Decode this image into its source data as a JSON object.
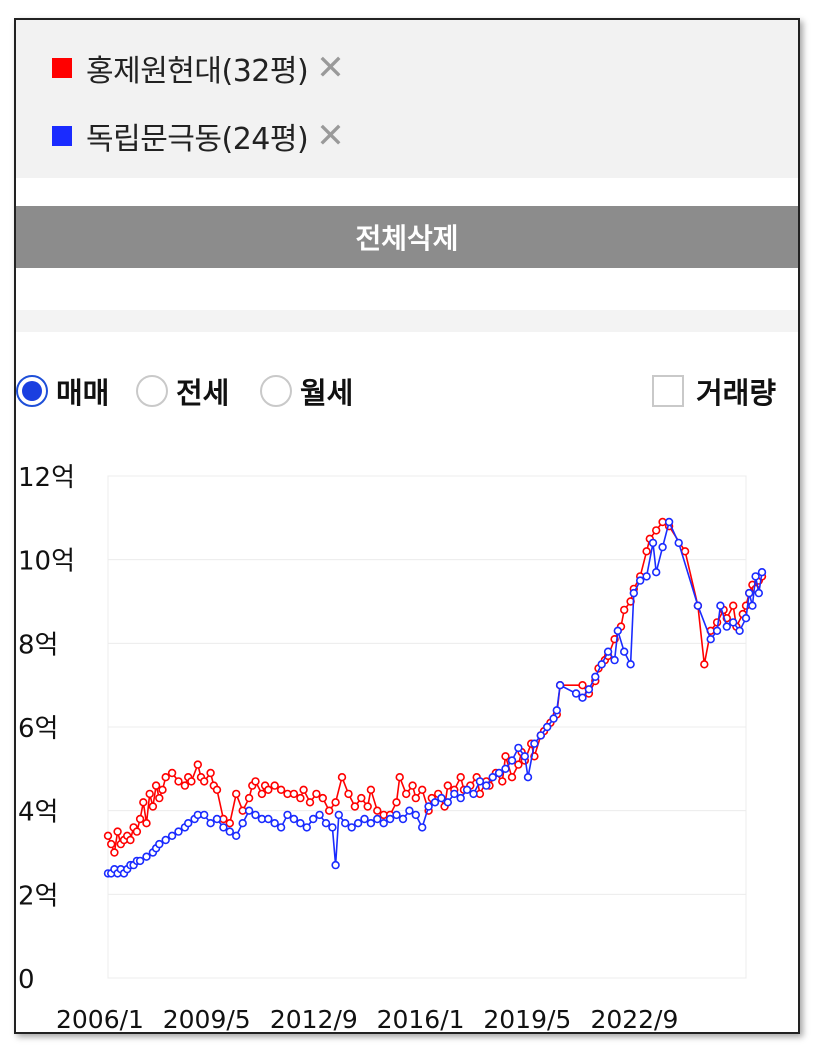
{
  "legend": [
    {
      "label": "홍제원현대(32평)",
      "color": "#ff0000",
      "close": "✕"
    },
    {
      "label": "독립문극동(24평)",
      "color": "#1a2bff",
      "close": "✕"
    }
  ],
  "delete_all_label": "전체삭제",
  "deal_types": [
    {
      "label": "매매",
      "selected": true
    },
    {
      "label": "전세",
      "selected": false
    },
    {
      "label": "월세",
      "selected": false
    }
  ],
  "volume_checkbox": {
    "label": "거래량",
    "checked": false
  },
  "chart_data": {
    "type": "line",
    "y_ticks": [
      "0",
      "2억",
      "4억",
      "6억",
      "8억",
      "10억",
      "12억"
    ],
    "y_tick_values": [
      0,
      2,
      4,
      6,
      8,
      10,
      12
    ],
    "x_ticks": [
      "2006/1",
      "2009/5",
      "2012/9",
      "2016/1",
      "2019/5",
      "2022/9"
    ],
    "x_tick_values": [
      2006.0,
      2009.33,
      2012.67,
      2016.0,
      2019.33,
      2022.67
    ],
    "xlim": [
      2006.0,
      2025.9
    ],
    "ylim": [
      0,
      12
    ],
    "grid": true,
    "series": [
      {
        "name": "홍제원현대(32평)",
        "color": "#ff0000",
        "points": [
          [
            2006.0,
            3.4
          ],
          [
            2006.1,
            3.2
          ],
          [
            2006.2,
            3.0
          ],
          [
            2006.3,
            3.5
          ],
          [
            2006.4,
            3.2
          ],
          [
            2006.5,
            3.3
          ],
          [
            2006.6,
            3.4
          ],
          [
            2006.7,
            3.3
          ],
          [
            2006.8,
            3.6
          ],
          [
            2006.9,
            3.5
          ],
          [
            2007.0,
            3.8
          ],
          [
            2007.1,
            4.2
          ],
          [
            2007.2,
            3.7
          ],
          [
            2007.3,
            4.4
          ],
          [
            2007.4,
            4.1
          ],
          [
            2007.5,
            4.6
          ],
          [
            2007.6,
            4.3
          ],
          [
            2007.7,
            4.5
          ],
          [
            2007.8,
            4.8
          ],
          [
            2008.0,
            4.9
          ],
          [
            2008.2,
            4.7
          ],
          [
            2008.4,
            4.6
          ],
          [
            2008.5,
            4.8
          ],
          [
            2008.6,
            4.7
          ],
          [
            2008.8,
            5.1
          ],
          [
            2008.9,
            4.8
          ],
          [
            2009.0,
            4.7
          ],
          [
            2009.2,
            4.9
          ],
          [
            2009.3,
            4.6
          ],
          [
            2009.4,
            4.5
          ],
          [
            2009.6,
            3.8
          ],
          [
            2009.8,
            3.7
          ],
          [
            2010.0,
            4.4
          ],
          [
            2010.2,
            4.0
          ],
          [
            2010.4,
            4.3
          ],
          [
            2010.5,
            4.6
          ],
          [
            2010.6,
            4.7
          ],
          [
            2010.8,
            4.4
          ],
          [
            2010.9,
            4.6
          ],
          [
            2011.0,
            4.5
          ],
          [
            2011.2,
            4.6
          ],
          [
            2011.4,
            4.5
          ],
          [
            2011.6,
            4.4
          ],
          [
            2011.8,
            4.4
          ],
          [
            2012.0,
            4.3
          ],
          [
            2012.1,
            4.5
          ],
          [
            2012.3,
            4.2
          ],
          [
            2012.5,
            4.4
          ],
          [
            2012.7,
            4.3
          ],
          [
            2012.9,
            4.0
          ],
          [
            2013.1,
            4.2
          ],
          [
            2013.3,
            4.8
          ],
          [
            2013.5,
            4.4
          ],
          [
            2013.7,
            4.1
          ],
          [
            2013.9,
            4.3
          ],
          [
            2014.1,
            4.1
          ],
          [
            2014.2,
            4.5
          ],
          [
            2014.4,
            4.0
          ],
          [
            2014.6,
            3.9
          ],
          [
            2014.8,
            3.9
          ],
          [
            2015.0,
            4.2
          ],
          [
            2015.1,
            4.8
          ],
          [
            2015.3,
            4.4
          ],
          [
            2015.5,
            4.6
          ],
          [
            2015.6,
            4.3
          ],
          [
            2015.8,
            4.5
          ],
          [
            2016.0,
            4.0
          ],
          [
            2016.1,
            4.3
          ],
          [
            2016.3,
            4.4
          ],
          [
            2016.5,
            4.1
          ],
          [
            2016.6,
            4.6
          ],
          [
            2016.8,
            4.5
          ],
          [
            2017.0,
            4.8
          ],
          [
            2017.1,
            4.5
          ],
          [
            2017.3,
            4.6
          ],
          [
            2017.5,
            4.8
          ],
          [
            2017.6,
            4.4
          ],
          [
            2017.8,
            4.7
          ],
          [
            2017.9,
            4.6
          ],
          [
            2018.1,
            4.9
          ],
          [
            2018.3,
            4.7
          ],
          [
            2018.4,
            5.3
          ],
          [
            2018.6,
            4.8
          ],
          [
            2018.8,
            5.1
          ],
          [
            2018.9,
            5.4
          ],
          [
            2019.0,
            5.2
          ],
          [
            2019.2,
            5.6
          ],
          [
            2019.3,
            5.3
          ],
          [
            2019.5,
            5.8
          ],
          [
            2019.6,
            5.9
          ],
          [
            2019.8,
            6.1
          ],
          [
            2020.0,
            6.3
          ],
          [
            2020.1,
            7.0
          ],
          [
            2020.8,
            7.0
          ],
          [
            2021.0,
            6.8
          ],
          [
            2021.2,
            7.1
          ],
          [
            2021.3,
            7.4
          ],
          [
            2021.5,
            7.6
          ],
          [
            2021.6,
            7.7
          ],
          [
            2021.8,
            8.1
          ],
          [
            2022.0,
            8.4
          ],
          [
            2022.1,
            8.8
          ],
          [
            2022.3,
            9.0
          ],
          [
            2022.4,
            9.3
          ],
          [
            2022.6,
            9.6
          ],
          [
            2022.8,
            10.2
          ],
          [
            2022.9,
            10.5
          ],
          [
            2023.1,
            10.7
          ],
          [
            2023.3,
            10.9
          ],
          [
            2023.5,
            10.8
          ],
          [
            2024.0,
            10.2
          ],
          [
            2024.4,
            8.9
          ],
          [
            2024.6,
            7.5
          ],
          [
            2024.8,
            8.3
          ],
          [
            2025.0,
            8.5
          ],
          [
            2025.2,
            8.8
          ],
          [
            2025.3,
            8.6
          ],
          [
            2025.5,
            8.9
          ],
          [
            2025.6,
            8.4
          ],
          [
            2025.8,
            8.7
          ],
          [
            2025.9,
            8.9
          ],
          [
            2026.0,
            9.2
          ],
          [
            2026.1,
            9.4
          ],
          [
            2026.2,
            9.3
          ],
          [
            2026.3,
            9.5
          ],
          [
            2026.4,
            9.6
          ]
        ]
      },
      {
        "name": "독립문극동(24평)",
        "color": "#1a2bff",
        "points": [
          [
            2006.0,
            2.5
          ],
          [
            2006.1,
            2.5
          ],
          [
            2006.2,
            2.6
          ],
          [
            2006.3,
            2.5
          ],
          [
            2006.4,
            2.6
          ],
          [
            2006.5,
            2.5
          ],
          [
            2006.6,
            2.6
          ],
          [
            2006.7,
            2.7
          ],
          [
            2006.8,
            2.7
          ],
          [
            2006.9,
            2.8
          ],
          [
            2007.0,
            2.8
          ],
          [
            2007.2,
            2.9
          ],
          [
            2007.4,
            3.0
          ],
          [
            2007.5,
            3.1
          ],
          [
            2007.6,
            3.2
          ],
          [
            2007.8,
            3.3
          ],
          [
            2008.0,
            3.4
          ],
          [
            2008.2,
            3.5
          ],
          [
            2008.4,
            3.6
          ],
          [
            2008.5,
            3.7
          ],
          [
            2008.7,
            3.8
          ],
          [
            2008.8,
            3.9
          ],
          [
            2009.0,
            3.9
          ],
          [
            2009.2,
            3.7
          ],
          [
            2009.4,
            3.8
          ],
          [
            2009.6,
            3.6
          ],
          [
            2009.8,
            3.5
          ],
          [
            2010.0,
            3.4
          ],
          [
            2010.2,
            3.7
          ],
          [
            2010.4,
            4.0
          ],
          [
            2010.6,
            3.9
          ],
          [
            2010.8,
            3.8
          ],
          [
            2011.0,
            3.8
          ],
          [
            2011.2,
            3.7
          ],
          [
            2011.4,
            3.6
          ],
          [
            2011.6,
            3.9
          ],
          [
            2011.8,
            3.8
          ],
          [
            2012.0,
            3.7
          ],
          [
            2012.2,
            3.6
          ],
          [
            2012.4,
            3.8
          ],
          [
            2012.6,
            3.9
          ],
          [
            2012.8,
            3.7
          ],
          [
            2013.0,
            3.6
          ],
          [
            2013.1,
            2.7
          ],
          [
            2013.2,
            3.9
          ],
          [
            2013.4,
            3.7
          ],
          [
            2013.6,
            3.6
          ],
          [
            2013.8,
            3.7
          ],
          [
            2014.0,
            3.8
          ],
          [
            2014.2,
            3.7
          ],
          [
            2014.4,
            3.8
          ],
          [
            2014.6,
            3.7
          ],
          [
            2014.8,
            3.8
          ],
          [
            2015.0,
            3.9
          ],
          [
            2015.2,
            3.8
          ],
          [
            2015.4,
            4.0
          ],
          [
            2015.6,
            3.9
          ],
          [
            2015.8,
            3.6
          ],
          [
            2016.0,
            4.1
          ],
          [
            2016.2,
            4.2
          ],
          [
            2016.4,
            4.3
          ],
          [
            2016.6,
            4.2
          ],
          [
            2016.8,
            4.4
          ],
          [
            2017.0,
            4.3
          ],
          [
            2017.2,
            4.5
          ],
          [
            2017.4,
            4.4
          ],
          [
            2017.6,
            4.7
          ],
          [
            2017.8,
            4.6
          ],
          [
            2018.0,
            4.8
          ],
          [
            2018.2,
            4.9
          ],
          [
            2018.4,
            5.0
          ],
          [
            2018.6,
            5.2
          ],
          [
            2018.8,
            5.5
          ],
          [
            2019.0,
            5.3
          ],
          [
            2019.1,
            4.8
          ],
          [
            2019.3,
            5.6
          ],
          [
            2019.5,
            5.8
          ],
          [
            2019.7,
            6.0
          ],
          [
            2019.9,
            6.2
          ],
          [
            2020.0,
            6.4
          ],
          [
            2020.1,
            7.0
          ],
          [
            2020.6,
            6.8
          ],
          [
            2020.8,
            6.7
          ],
          [
            2021.0,
            6.9
          ],
          [
            2021.2,
            7.2
          ],
          [
            2021.4,
            7.5
          ],
          [
            2021.6,
            7.8
          ],
          [
            2021.8,
            7.6
          ],
          [
            2021.9,
            8.3
          ],
          [
            2022.1,
            7.8
          ],
          [
            2022.3,
            7.5
          ],
          [
            2022.4,
            9.2
          ],
          [
            2022.6,
            9.5
          ],
          [
            2022.8,
            9.6
          ],
          [
            2023.0,
            10.4
          ],
          [
            2023.1,
            9.7
          ],
          [
            2023.3,
            10.3
          ],
          [
            2023.5,
            10.9
          ],
          [
            2023.8,
            10.4
          ],
          [
            2024.4,
            8.9
          ],
          [
            2024.8,
            8.1
          ],
          [
            2025.0,
            8.3
          ],
          [
            2025.1,
            8.9
          ],
          [
            2025.3,
            8.4
          ],
          [
            2025.5,
            8.5
          ],
          [
            2025.7,
            8.3
          ],
          [
            2025.9,
            8.6
          ],
          [
            2026.0,
            9.2
          ],
          [
            2026.1,
            8.9
          ],
          [
            2026.2,
            9.6
          ],
          [
            2026.3,
            9.2
          ],
          [
            2026.4,
            9.7
          ]
        ]
      }
    ]
  }
}
